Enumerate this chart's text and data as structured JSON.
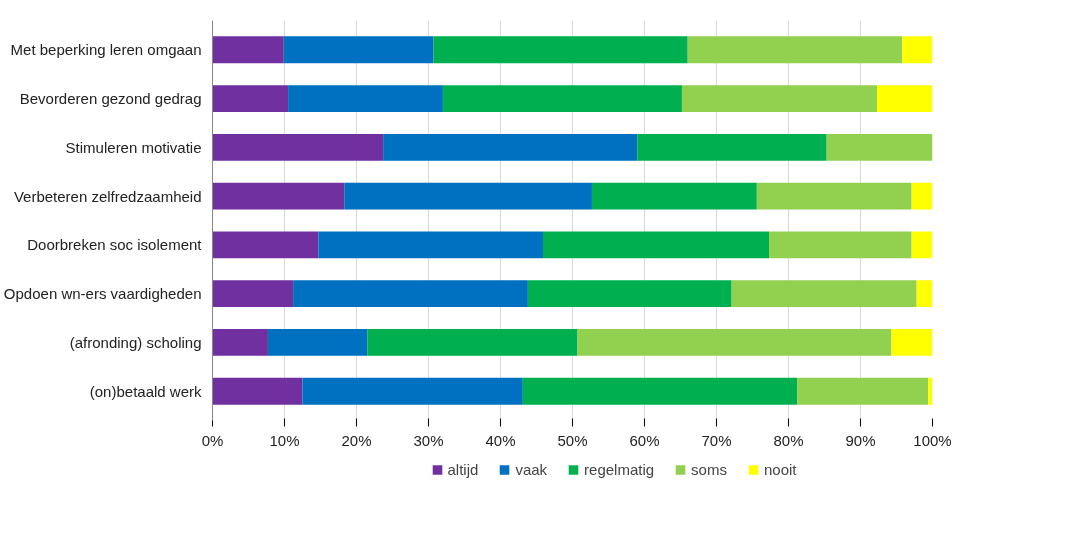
{
  "chart_data": {
    "type": "bar",
    "orientation": "horizontal",
    "stacked": true,
    "categories": [
      "Met beperking leren omgaan",
      "Bevorderen gezond gedrag",
      "Stimuleren motivatie",
      "Verbeteren zelfredzaamheid",
      "Doorbreken soc isolement",
      "Opdoen wn-ers vaardigheden",
      "(afronding) scholing",
      "(on)betaald werk"
    ],
    "series": [
      {
        "name": "altijd",
        "color": "#7030a0",
        "values": [
          9.9,
          10.5,
          23.7,
          18.3,
          14.7,
          11.2,
          7.7,
          12.5
        ]
      },
      {
        "name": "vaak",
        "color": "#0070c0",
        "values": [
          20.8,
          21.5,
          35.3,
          34.4,
          31.2,
          32.6,
          13.8,
          30.6
        ]
      },
      {
        "name": "regelmatig",
        "color": "#00b050",
        "values": [
          35.3,
          33.2,
          26.3,
          22.9,
          31.4,
          28.3,
          29.2,
          38.1
        ]
      },
      {
        "name": "soms",
        "color": "#92d050",
        "values": [
          29.8,
          27.1,
          14.7,
          21.5,
          19.8,
          25.7,
          43.6,
          18.2
        ]
      },
      {
        "name": "nooit",
        "color": "#ffff00",
        "values": [
          4.2,
          7.7,
          0,
          2.9,
          2.9,
          2.2,
          5.7,
          0.6
        ]
      }
    ],
    "xlim": [
      0,
      100
    ],
    "xticks": [
      {
        "value": 0,
        "label": "0%"
      },
      {
        "value": 10,
        "label": "10%"
      },
      {
        "value": 20,
        "label": "20%"
      },
      {
        "value": 30,
        "label": "30%"
      },
      {
        "value": 40,
        "label": "40%"
      },
      {
        "value": 50,
        "label": "50%"
      },
      {
        "value": 60,
        "label": "60%"
      },
      {
        "value": 70,
        "label": "70%"
      },
      {
        "value": 80,
        "label": "80%"
      },
      {
        "value": 90,
        "label": "90%"
      },
      {
        "value": 100,
        "label": "100%"
      }
    ],
    "grid": "x",
    "legend": "bottom"
  }
}
